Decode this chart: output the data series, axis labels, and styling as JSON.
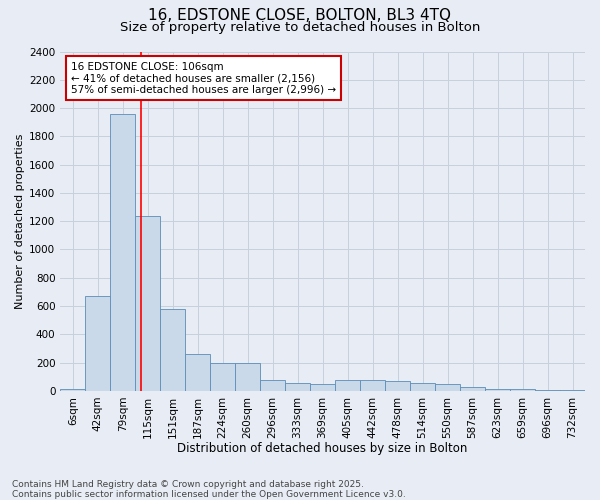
{
  "title1": "16, EDSTONE CLOSE, BOLTON, BL3 4TQ",
  "title2": "Size of property relative to detached houses in Bolton",
  "xlabel": "Distribution of detached houses by size in Bolton",
  "ylabel": "Number of detached properties",
  "categories": [
    "6sqm",
    "42sqm",
    "79sqm",
    "115sqm",
    "151sqm",
    "187sqm",
    "224sqm",
    "260sqm",
    "296sqm",
    "333sqm",
    "369sqm",
    "405sqm",
    "442sqm",
    "478sqm",
    "514sqm",
    "550sqm",
    "587sqm",
    "623sqm",
    "659sqm",
    "696sqm",
    "732sqm"
  ],
  "values": [
    10,
    670,
    1960,
    1240,
    580,
    260,
    200,
    200,
    75,
    55,
    50,
    80,
    80,
    70,
    55,
    45,
    30,
    15,
    10,
    5,
    5
  ],
  "bar_color": "#c9d9ea",
  "bar_edge_color": "#5b8db8",
  "red_line_x": 2.72,
  "annotation_line1": "16 EDSTONE CLOSE: 106sqm",
  "annotation_line2": "← 41% of detached houses are smaller (2,156)",
  "annotation_line3": "57% of semi-detached houses are larger (2,996) →",
  "annotation_box_color": "#ffffff",
  "annotation_box_edge": "#cc0000",
  "ylim": [
    0,
    2400
  ],
  "yticks": [
    0,
    200,
    400,
    600,
    800,
    1000,
    1200,
    1400,
    1600,
    1800,
    2000,
    2200,
    2400
  ],
  "grid_color": "#c8d0dc",
  "background_color": "#e8edf5",
  "footnote": "Contains HM Land Registry data © Crown copyright and database right 2025.\nContains public sector information licensed under the Open Government Licence v3.0.",
  "title1_fontsize": 11,
  "title2_fontsize": 9.5,
  "xlabel_fontsize": 8.5,
  "ylabel_fontsize": 8,
  "tick_fontsize": 7.5,
  "annotation_fontsize": 7.5,
  "footnote_fontsize": 6.5
}
